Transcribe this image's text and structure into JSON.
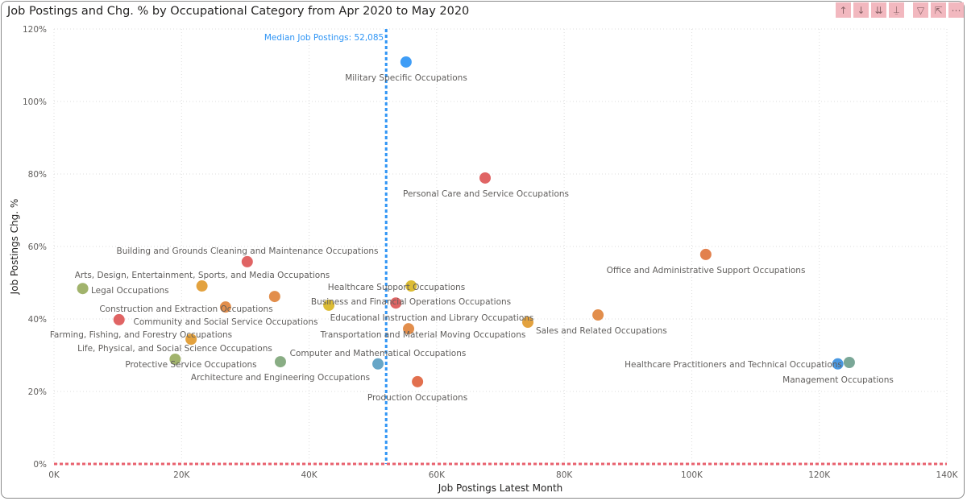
{
  "header": {
    "title": "Job Postings and Chg. % by Occupational Category from Apr 2020 to May 2020",
    "icons": [
      "arrow-up-icon",
      "arrow-down-icon",
      "double-arrow-down-icon",
      "expand-hierarchy-icon",
      "filter-icon",
      "focus-mode-icon",
      "more-options-icon"
    ]
  },
  "chart_data": {
    "type": "scatter",
    "title": "Job Postings and Chg. % by Occupational Category from Apr 2020 to May 2020",
    "xlabel": "Job Postings Latest Month",
    "ylabel": "Job Postings Chg. %",
    "xlim": [
      0,
      140000
    ],
    "ylim": [
      0,
      120
    ],
    "x_ticks": [
      "0K",
      "20K",
      "40K",
      "60K",
      "80K",
      "100K",
      "120K",
      "140K"
    ],
    "y_ticks": [
      "0%",
      "20%",
      "40%",
      "60%",
      "80%",
      "100%",
      "120%"
    ],
    "grid": true,
    "reference_lines": [
      {
        "axis": "x",
        "value": 52085,
        "label": "Median Job Postings: 52,085",
        "color": "#2f95f5"
      },
      {
        "axis": "y",
        "value": 0,
        "label": "",
        "color": "#e8606e"
      }
    ],
    "points": [
      {
        "label": "Military Specific Occupations",
        "x": 55200,
        "y": 110.9,
        "color": "#2f95f5"
      },
      {
        "label": "Personal Care and Service Occupations",
        "x": 67600,
        "y": 78.9,
        "color": "#dd5757"
      },
      {
        "label": "Office and Administrative Support Occupations",
        "x": 102200,
        "y": 57.8,
        "color": "#e0763f"
      },
      {
        "label": "Building and Grounds Cleaning and Maintenance Occupations",
        "x": 30300,
        "y": 55.8,
        "color": "#dd5757"
      },
      {
        "label": "Arts, Design, Entertainment, Sports, and Media Occupations",
        "x": 23200,
        "y": 49.1,
        "color": "#e19a2f"
      },
      {
        "label": "Legal Occupations",
        "x": 4500,
        "y": 48.4,
        "color": "#99ad60"
      },
      {
        "label": "Healthcare Support Occupations",
        "x": 56000,
        "y": 49.1,
        "color": "#d9b624"
      },
      {
        "label": "Business and Financial Operations Occupations",
        "x": 53600,
        "y": 44.4,
        "color": "#dd5757"
      },
      {
        "label": "Construction and Extraction Occupations",
        "x": 26900,
        "y": 43.3,
        "color": "#e0843d"
      },
      {
        "label": "Community and Social Service Occupations",
        "x": 34600,
        "y": 46.2,
        "color": "#e0843d"
      },
      {
        "label": "",
        "x": 43100,
        "y": 43.8,
        "color": "#d9b624"
      },
      {
        "label": "Educational Instruction and Library Occupations",
        "x": 74300,
        "y": 39.1,
        "color": "#e19a2f"
      },
      {
        "label": "Sales and Related Occupations",
        "x": 85300,
        "y": 41.1,
        "color": "#e0843d"
      },
      {
        "label": "Farming, Fishing, and Forestry Occupations",
        "x": 10200,
        "y": 39.8,
        "color": "#dd5757"
      },
      {
        "label": "Transportation and Material Moving Occupations",
        "x": 55600,
        "y": 37.3,
        "color": "#e0843d"
      },
      {
        "label": "Life, Physical, and Social Science Occupations",
        "x": 21500,
        "y": 34.4,
        "color": "#e19a2f"
      },
      {
        "label": "Computer and Mathematical Occupations",
        "x": 50800,
        "y": 27.6,
        "color": "#5a9ec2"
      },
      {
        "label": "Protective Service Occupations",
        "x": 19000,
        "y": 28.9,
        "color": "#99ad60"
      },
      {
        "label": "Architecture and Engineering Occupations",
        "x": 35500,
        "y": 28.2,
        "color": "#7fa67a"
      },
      {
        "label": "Healthcare Practitioners and Technical Occupations",
        "x": 122900,
        "y": 27.6,
        "color": "#3a8fe0"
      },
      {
        "label": "Management Occupations",
        "x": 124700,
        "y": 28.0,
        "color": "#6f9f8e"
      },
      {
        "label": "Production Occupations",
        "x": 57000,
        "y": 22.7,
        "color": "#e0643f"
      }
    ]
  }
}
